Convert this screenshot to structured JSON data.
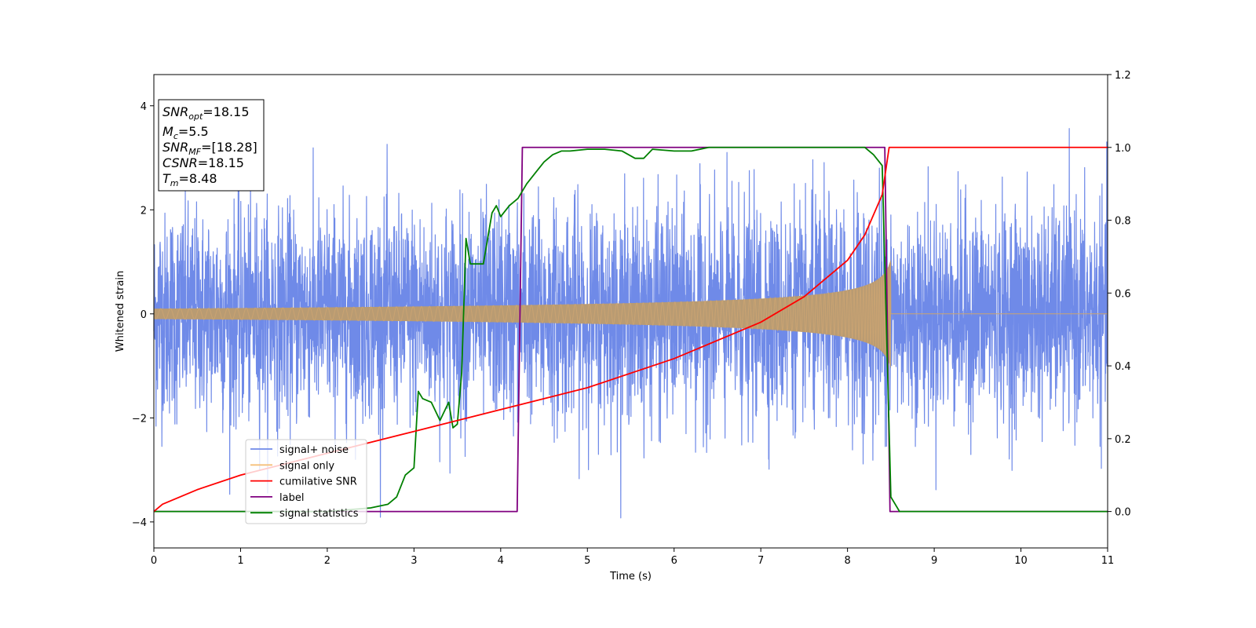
{
  "chart_data": {
    "type": "line",
    "xlabel": "Time (s)",
    "ylabel": "Whitened strain",
    "xlim": [
      0,
      11
    ],
    "ylim": [
      -4.5,
      4.6
    ],
    "y2lim": [
      -0.1,
      1.2
    ],
    "x_ticks": [
      0,
      1,
      2,
      3,
      4,
      5,
      6,
      7,
      8,
      9,
      10,
      11
    ],
    "y_ticks": [
      -4,
      -2,
      0,
      2,
      4
    ],
    "y2_ticks": [
      "0.0",
      "0.2",
      "0.4",
      "0.6",
      "0.8",
      "1.0",
      "1.2"
    ],
    "legend_placement": "lower-left",
    "grid": false,
    "merger_time": 8.48,
    "info_box": {
      "snr_opt": {
        "sym": "SNR",
        "sub": "opt",
        "value": "=18.15"
      },
      "mc": {
        "sym": "M",
        "sub": "c",
        "value": "=5.5"
      },
      "snr_mf": {
        "sym": "SNR",
        "sub": "MF",
        "value": "=[18.28]"
      },
      "csnr": {
        "sym": "CSNR",
        "value": "=18.15"
      },
      "tm": {
        "sym": "T",
        "sub": "m",
        "value": "=8.48"
      }
    },
    "series": [
      {
        "name": "signal+ noise",
        "color": "#6f8ae8",
        "axis": "left",
        "description_kind": "noise",
        "std": 1.0
      },
      {
        "name": "signal only",
        "color": "#f5c07a",
        "axis": "left",
        "description_kind": "chirp",
        "amp_start": 0.1,
        "amp_end": 1.05,
        "end_time": 8.5
      },
      {
        "name": "cumilative SNR",
        "color": "#ff0000",
        "axis": "right",
        "x": [
          0,
          0.1,
          0.5,
          1,
          2,
          3,
          4,
          5,
          6,
          7,
          7.5,
          8,
          8.2,
          8.4,
          8.48,
          8.5,
          11
        ],
        "y": [
          0.0,
          0.02,
          0.06,
          0.1,
          0.16,
          0.22,
          0.28,
          0.34,
          0.42,
          0.52,
          0.59,
          0.69,
          0.76,
          0.87,
          1.0,
          1.0,
          1.0
        ]
      },
      {
        "name": "label",
        "color": "#800080",
        "axis": "right",
        "x": [
          0,
          4.19,
          4.25,
          8.43,
          8.49,
          11
        ],
        "y": [
          0,
          0,
          1,
          1,
          0,
          0
        ]
      },
      {
        "name": "signal statistics",
        "color": "#008000",
        "axis": "right",
        "x": [
          0,
          1,
          2,
          2.5,
          2.7,
          2.8,
          2.9,
          3.0,
          3.05,
          3.1,
          3.2,
          3.3,
          3.4,
          3.45,
          3.5,
          3.55,
          3.6,
          3.65,
          3.7,
          3.8,
          3.9,
          3.95,
          4.0,
          4.1,
          4.2,
          4.3,
          4.4,
          4.5,
          4.6,
          4.7,
          4.8,
          5.0,
          5.2,
          5.4,
          5.55,
          5.65,
          5.75,
          6.0,
          6.2,
          6.4,
          6.6,
          6.8,
          7.0,
          7.3,
          7.6,
          7.9,
          8.2,
          8.3,
          8.4,
          8.45,
          8.5,
          8.55,
          8.6,
          11
        ],
        "y": [
          0,
          0,
          0,
          0.01,
          0.02,
          0.04,
          0.1,
          0.12,
          0.33,
          0.31,
          0.3,
          0.25,
          0.3,
          0.23,
          0.24,
          0.38,
          0.75,
          0.68,
          0.68,
          0.68,
          0.82,
          0.84,
          0.81,
          0.84,
          0.86,
          0.9,
          0.93,
          0.96,
          0.98,
          0.99,
          0.99,
          0.995,
          0.995,
          0.99,
          0.97,
          0.97,
          0.995,
          0.99,
          0.99,
          1.0,
          1.0,
          1.0,
          1.0,
          1.0,
          1.0,
          1.0,
          1.0,
          0.98,
          0.95,
          0.5,
          0.04,
          0.02,
          0.0,
          0.0
        ]
      }
    ]
  }
}
